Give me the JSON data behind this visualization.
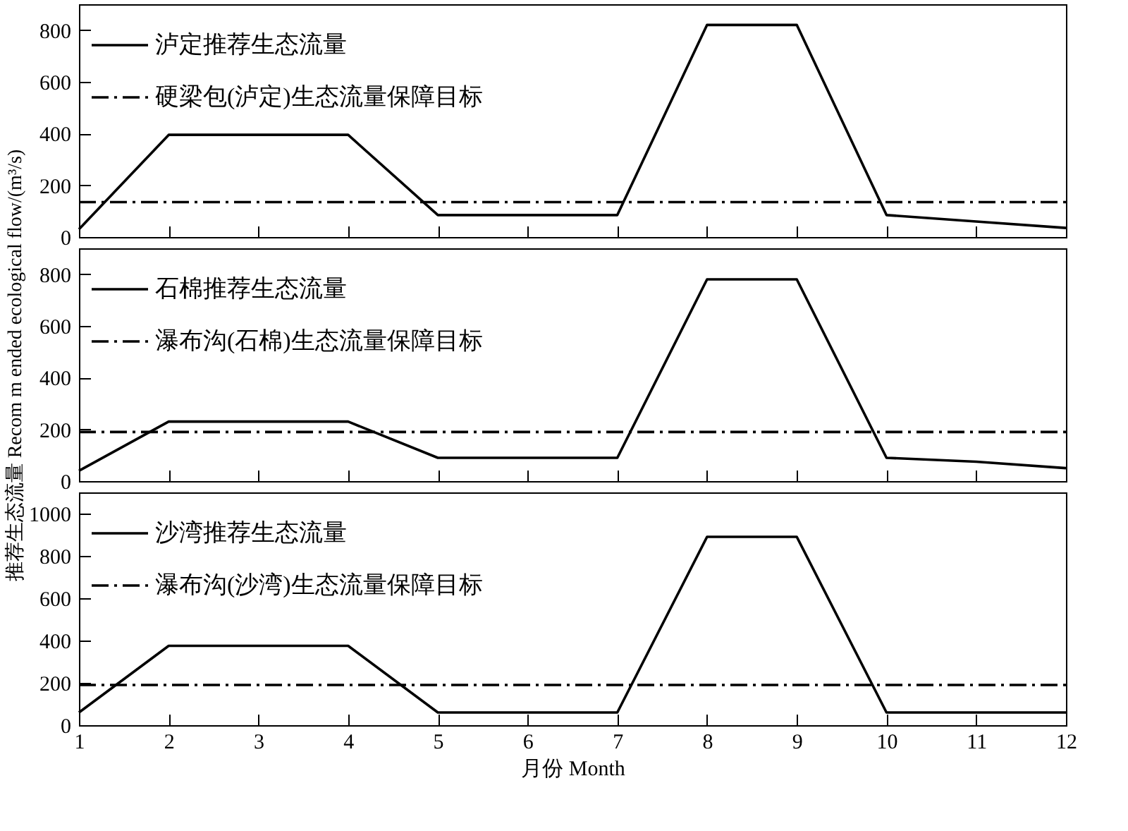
{
  "chart_data": [
    {
      "type": "line",
      "x": [
        1,
        2,
        3,
        4,
        5,
        6,
        7,
        8,
        9,
        10,
        11,
        12
      ],
      "xlim": [
        1,
        12
      ],
      "xticks": [
        1,
        2,
        3,
        4,
        5,
        6,
        7,
        8,
        9,
        10,
        11,
        12
      ],
      "ylim": [
        0,
        900
      ],
      "yticks": [
        0,
        200,
        400,
        600,
        800
      ],
      "tick_labels": "y",
      "legend": "top left",
      "grid": false,
      "series": [
        {
          "name": "泸定推荐生态流量",
          "color": "#000000",
          "line_style": "solid",
          "values": [
            30,
            395,
            395,
            395,
            85,
            85,
            85,
            820,
            820,
            85,
            60,
            35
          ]
        },
        {
          "name": "硬梁包(泸定)生态流量保障目标",
          "color": "#000000",
          "line_style": "dashdot",
          "values": [
            135,
            135,
            135,
            135,
            135,
            135,
            135,
            135,
            135,
            135,
            135,
            135
          ]
        }
      ]
    },
    {
      "type": "line",
      "x": [
        1,
        2,
        3,
        4,
        5,
        6,
        7,
        8,
        9,
        10,
        11,
        12
      ],
      "xlim": [
        1,
        12
      ],
      "xticks": [
        1,
        2,
        3,
        4,
        5,
        6,
        7,
        8,
        9,
        10,
        11,
        12
      ],
      "ylim": [
        0,
        900
      ],
      "yticks": [
        0,
        200,
        400,
        600,
        800
      ],
      "tick_labels": "y",
      "legend": "top left",
      "grid": false,
      "ylabel": "推荐生态流量 Recom m ended ecological flow/(m³/s)",
      "series": [
        {
          "name": "石棉推荐生态流量",
          "color": "#000000",
          "line_style": "solid",
          "values": [
            40,
            230,
            230,
            230,
            90,
            90,
            90,
            780,
            780,
            90,
            75,
            50
          ]
        },
        {
          "name": "瀑布沟(石棉)生态流量保障目标",
          "color": "#000000",
          "line_style": "dashdot",
          "values": [
            190,
            190,
            190,
            190,
            190,
            190,
            190,
            190,
            190,
            190,
            190,
            190
          ]
        }
      ]
    },
    {
      "type": "line",
      "x": [
        1,
        2,
        3,
        4,
        5,
        6,
        7,
        8,
        9,
        10,
        11,
        12
      ],
      "xlim": [
        1,
        12
      ],
      "xticks": [
        1,
        2,
        3,
        4,
        5,
        6,
        7,
        8,
        9,
        10,
        11,
        12
      ],
      "ylim": [
        0,
        1100
      ],
      "yticks": [
        0,
        200,
        400,
        600,
        800,
        1000
      ],
      "legend": "top left",
      "grid": false,
      "xlabel": "月份 Month",
      "series": [
        {
          "name": "沙湾推荐生态流量",
          "color": "#000000",
          "line_style": "solid",
          "values": [
            60,
            375,
            375,
            375,
            60,
            60,
            60,
            890,
            890,
            60,
            60,
            60
          ]
        },
        {
          "name": "瀑布沟(沙湾)生态流量保障目标",
          "color": "#000000",
          "line_style": "dashdot",
          "values": [
            190,
            190,
            190,
            190,
            190,
            190,
            190,
            190,
            190,
            190,
            190,
            190
          ]
        }
      ]
    }
  ]
}
